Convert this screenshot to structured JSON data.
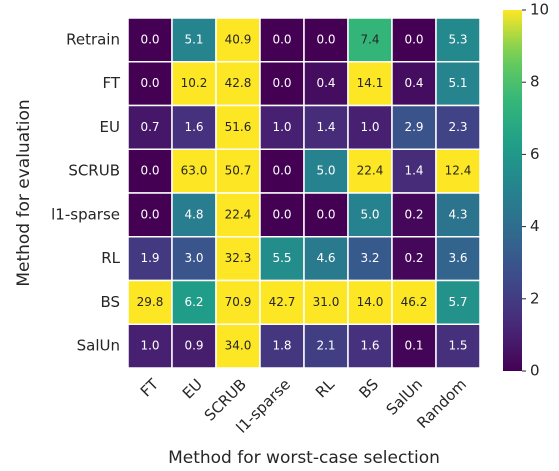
{
  "chart_data": {
    "type": "heatmap",
    "x_label": "Method for worst-case selection",
    "y_label": "Method for evaluation",
    "categories": [
      "FT",
      "EU",
      "SCRUB",
      "l1-sparse",
      "RL",
      "BS",
      "SalUn",
      "Random"
    ],
    "y_categories": [
      "Retrain",
      "FT",
      "EU",
      "SCRUB",
      "l1-sparse",
      "RL",
      "BS",
      "SalUn"
    ],
    "values": [
      [
        0,
        5.1,
        40.9,
        0,
        0,
        7.4,
        0,
        5.3
      ],
      [
        0,
        10.2,
        42.8,
        0,
        0.4,
        14.1,
        0.4,
        5.1
      ],
      [
        0.7,
        1.6,
        51.6,
        1,
        1.4,
        1,
        2.9,
        2.3
      ],
      [
        0,
        63,
        50.7,
        0,
        5,
        22.4,
        1.4,
        12.4
      ],
      [
        0,
        4.8,
        22.4,
        0,
        0,
        5,
        0.2,
        4.3
      ],
      [
        1.9,
        3,
        32.3,
        5.5,
        4.6,
        3.2,
        0.2,
        3.6
      ],
      [
        29.8,
        6.2,
        70.9,
        42.7,
        31,
        14,
        46.2,
        5.7
      ],
      [
        1,
        0.9,
        34,
        1.8,
        2.1,
        1.6,
        0.1,
        1.5
      ]
    ],
    "value_labels": [
      [
        "0.0",
        "5.1",
        "40.9",
        "0.0",
        "0.0",
        "7.4",
        "0.0",
        "5.3"
      ],
      [
        "0.0",
        "10.2",
        "42.8",
        "0.0",
        "0.4",
        "14.1",
        "0.4",
        "5.1"
      ],
      [
        "0.7",
        "1.6",
        "51.6",
        "1.0",
        "1.4",
        "1.0",
        "2.9",
        "2.3"
      ],
      [
        "0.0",
        "63.0",
        "50.7",
        "0.0",
        "5.0",
        "22.4",
        "1.4",
        "12.4"
      ],
      [
        "0.0",
        "4.8",
        "22.4",
        "0.0",
        "0.0",
        "5.0",
        "0.2",
        "4.3"
      ],
      [
        "1.9",
        "3.0",
        "32.3",
        "5.5",
        "4.6",
        "3.2",
        "0.2",
        "3.6"
      ],
      [
        "29.8",
        "6.2",
        "70.9",
        "42.7",
        "31.0",
        "14.0",
        "46.2",
        "5.7"
      ],
      [
        "1.0",
        "0.9",
        "34.0",
        "1.8",
        "2.1",
        "1.6",
        "0.1",
        "1.5"
      ]
    ],
    "colormap": "viridis",
    "zlim": [
      0,
      10
    ],
    "zticks": [
      0,
      2,
      4,
      6,
      8,
      10
    ]
  }
}
